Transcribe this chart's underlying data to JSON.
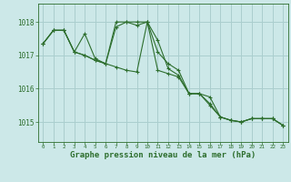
{
  "bg_color": "#cce8e8",
  "grid_color": "#aacece",
  "line_color": "#2d6e2d",
  "marker_color": "#2d6e2d",
  "xlabel": "Graphe pression niveau de la mer (hPa)",
  "xlabel_fontsize": 6.5,
  "ylabel_ticks": [
    1015,
    1016,
    1017,
    1018
  ],
  "xlim": [
    -0.5,
    23.5
  ],
  "ylim": [
    1014.4,
    1018.55
  ],
  "xticks": [
    0,
    1,
    2,
    3,
    4,
    5,
    6,
    7,
    8,
    9,
    10,
    11,
    12,
    13,
    14,
    15,
    16,
    17,
    18,
    19,
    20,
    21,
    22,
    23
  ],
  "series": [
    [
      1017.35,
      1017.75,
      1017.75,
      1017.1,
      1017.65,
      1016.9,
      1016.75,
      1018.0,
      1018.0,
      1017.9,
      1018.0,
      1017.1,
      1016.75,
      1016.55,
      1015.85,
      1015.85,
      1015.75,
      1015.15,
      1015.05,
      1015.0,
      1015.1,
      1015.1,
      1015.1,
      1014.9
    ],
    [
      1017.35,
      1017.75,
      1017.75,
      1017.1,
      1017.0,
      1016.85,
      1016.75,
      1017.85,
      1018.0,
      1018.0,
      1018.0,
      1017.45,
      1016.6,
      1016.4,
      1015.85,
      1015.85,
      1015.55,
      1015.15,
      1015.05,
      1015.0,
      1015.1,
      1015.1,
      1015.1,
      1014.9
    ],
    [
      1017.35,
      1017.75,
      1017.75,
      1017.1,
      1017.0,
      1016.85,
      1016.75,
      1016.65,
      1016.55,
      1016.5,
      1018.0,
      1016.55,
      1016.45,
      1016.35,
      1015.85,
      1015.85,
      1015.5,
      1015.15,
      1015.05,
      1015.0,
      1015.1,
      1015.1,
      1015.1,
      1014.9
    ]
  ]
}
